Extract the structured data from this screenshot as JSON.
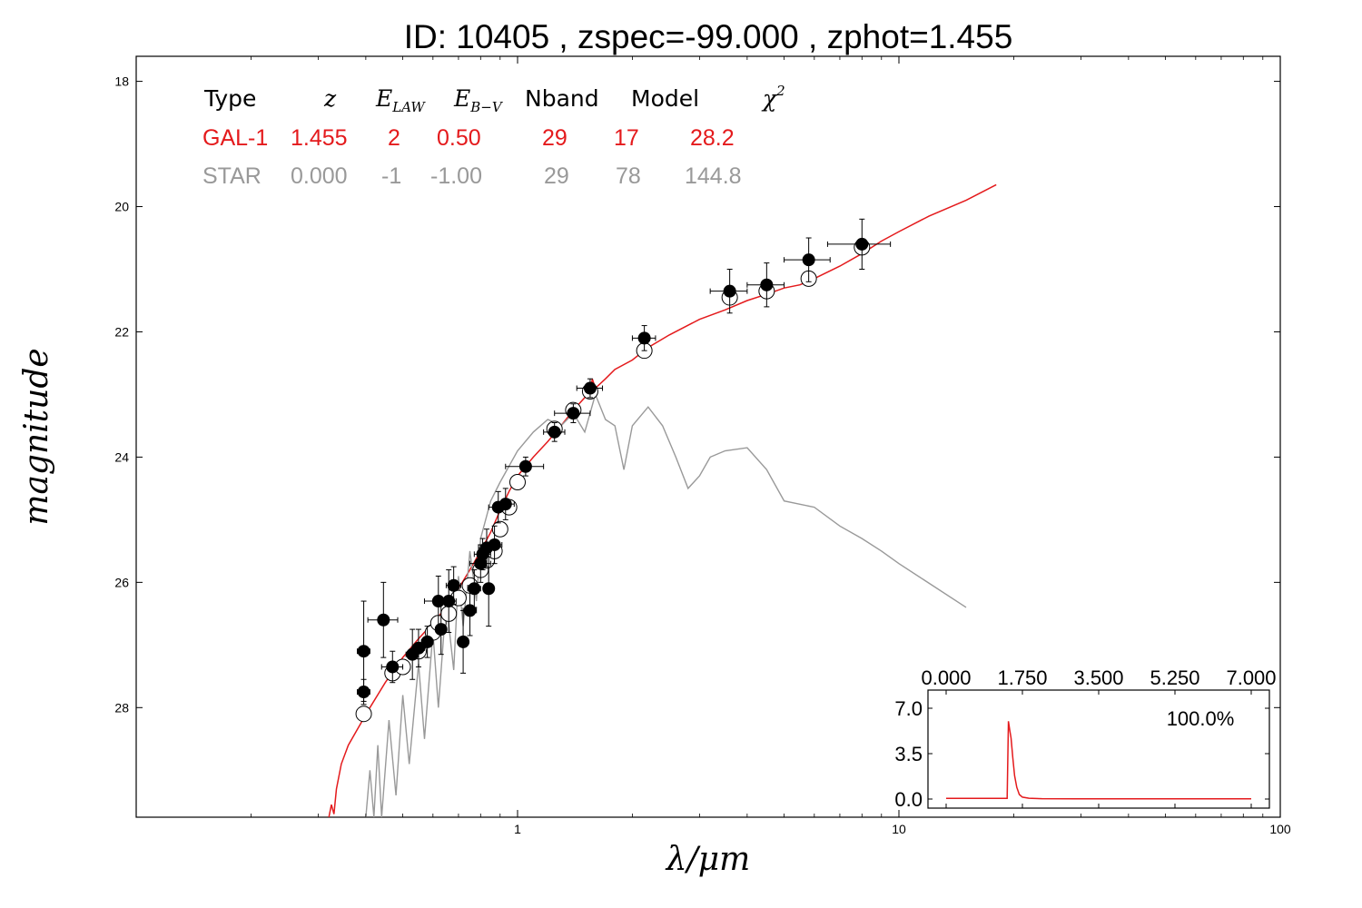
{
  "title": "ID:  10405 , zspec=-99.000 , zphot=1.455",
  "table": {
    "headers": {
      "type": "Type",
      "z": "z",
      "elaw_main": "E",
      "elaw_sub": "LAW",
      "ebv_main": "E",
      "ebv_sub": "B−V",
      "nband": "Nband",
      "model": "Model",
      "chi_main": "χ",
      "chi_sup": "2"
    },
    "rows": [
      {
        "type": "GAL-1",
        "z": "1.455",
        "elaw": "2",
        "ebv": "0.50",
        "nband": "29",
        "model": "17",
        "chi2": "28.2",
        "color": "#e41a1c"
      },
      {
        "type": "STAR",
        "z": "0.000",
        "elaw": "-1",
        "ebv": "-1.00",
        "nband": "29",
        "model": "78",
        "chi2": "144.8",
        "color": "#999999"
      }
    ]
  },
  "chart_data": [
    {
      "type": "scatter",
      "title": "ID:  10405 , zspec=-99.000 , zphot=1.455",
      "xlabel": "λ/μm",
      "ylabel": "magnitude",
      "xscale": "log",
      "xlim": [
        0.1,
        100
      ],
      "ylim": [
        29.75,
        17.6
      ],
      "y_inverted": true,
      "x_ticks": [
        "1",
        "10",
        "100"
      ],
      "y_ticks": [
        "18",
        "20",
        "22",
        "24",
        "26",
        "28"
      ],
      "y_tick_values": [
        18,
        20,
        22,
        24,
        26,
        28
      ],
      "colors": {
        "gal": "#e41a1c",
        "star": "#999999",
        "obs": "#000000"
      },
      "series": [
        {
          "name": "GAL-1",
          "kind": "line",
          "color": "#e41a1c",
          "points": [
            [
              0.32,
              29.75
            ],
            [
              0.325,
              29.55
            ],
            [
              0.33,
              29.7
            ],
            [
              0.335,
              29.3
            ],
            [
              0.345,
              28.9
            ],
            [
              0.36,
              28.6
            ],
            [
              0.38,
              28.35
            ],
            [
              0.41,
              28.0
            ],
            [
              0.45,
              27.6
            ],
            [
              0.5,
              27.2
            ],
            [
              0.55,
              26.9
            ],
            [
              0.6,
              26.65
            ],
            [
              0.65,
              26.4
            ],
            [
              0.7,
              26.1
            ],
            [
              0.75,
              25.8
            ],
            [
              0.8,
              25.5
            ],
            [
              0.85,
              25.2
            ],
            [
              0.9,
              24.85
            ],
            [
              0.95,
              24.55
            ],
            [
              1.0,
              24.3
            ],
            [
              1.1,
              24.0
            ],
            [
              1.2,
              23.75
            ],
            [
              1.3,
              23.5
            ],
            [
              1.4,
              23.25
            ],
            [
              1.5,
              23.05
            ],
            [
              1.55,
              23.0
            ],
            [
              1.57,
              22.75
            ],
            [
              1.6,
              22.9
            ],
            [
              1.7,
              22.75
            ],
            [
              1.8,
              22.6
            ],
            [
              2.0,
              22.45
            ],
            [
              2.2,
              22.25
            ],
            [
              2.5,
              22.05
            ],
            [
              3.0,
              21.8
            ],
            [
              3.5,
              21.65
            ],
            [
              4.0,
              21.5
            ],
            [
              4.5,
              21.4
            ],
            [
              5.0,
              21.3
            ],
            [
              5.5,
              21.25
            ],
            [
              6.0,
              21.15
            ],
            [
              7.0,
              20.95
            ],
            [
              8.0,
              20.75
            ],
            [
              9.0,
              20.55
            ],
            [
              10.0,
              20.4
            ],
            [
              12.0,
              20.15
            ],
            [
              15.0,
              19.9
            ],
            [
              18.0,
              19.65
            ]
          ]
        },
        {
          "name": "STAR",
          "kind": "line",
          "color": "#999999",
          "points": [
            [
              0.4,
              29.75
            ],
            [
              0.41,
              29.0
            ],
            [
              0.42,
              29.75
            ],
            [
              0.43,
              28.6
            ],
            [
              0.44,
              29.75
            ],
            [
              0.46,
              28.2
            ],
            [
              0.48,
              29.4
            ],
            [
              0.5,
              27.8
            ],
            [
              0.52,
              28.9
            ],
            [
              0.55,
              27.3
            ],
            [
              0.57,
              28.5
            ],
            [
              0.6,
              26.8
            ],
            [
              0.62,
              28.0
            ],
            [
              0.65,
              26.3
            ],
            [
              0.68,
              27.4
            ],
            [
              0.7,
              25.9
            ],
            [
              0.72,
              26.7
            ],
            [
              0.75,
              25.5
            ],
            [
              0.78,
              26.3
            ],
            [
              0.8,
              25.3
            ],
            [
              0.85,
              24.7
            ],
            [
              0.9,
              24.4
            ],
            [
              1.0,
              23.9
            ],
            [
              1.1,
              23.6
            ],
            [
              1.2,
              23.4
            ],
            [
              1.3,
              23.5
            ],
            [
              1.4,
              23.3
            ],
            [
              1.5,
              23.6
            ],
            [
              1.6,
              23.0
            ],
            [
              1.7,
              23.4
            ],
            [
              1.8,
              23.5
            ],
            [
              1.9,
              24.2
            ],
            [
              2.0,
              23.5
            ],
            [
              2.2,
              23.2
            ],
            [
              2.4,
              23.5
            ],
            [
              2.6,
              24.0
            ],
            [
              2.8,
              24.5
            ],
            [
              3.0,
              24.3
            ],
            [
              3.2,
              24.0
            ],
            [
              3.5,
              23.9
            ],
            [
              4.0,
              23.85
            ],
            [
              4.5,
              24.2
            ],
            [
              5.0,
              24.7
            ],
            [
              6.0,
              24.8
            ],
            [
              7.0,
              25.1
            ],
            [
              8.0,
              25.3
            ],
            [
              9.0,
              25.5
            ],
            [
              10.0,
              25.7
            ],
            [
              15.0,
              26.4
            ]
          ]
        }
      ],
      "observed": {
        "name": "observed",
        "marker": "filled-circle",
        "color": "#000000",
        "points": [
          {
            "x": 0.395,
            "y": 27.1,
            "yerr": 0.8,
            "xerr": [
              0.015,
              0.015
            ]
          },
          {
            "x": 0.395,
            "y": 27.75,
            "yerr": 0.2,
            "xerr": [
              0.015,
              0.015
            ]
          },
          {
            "x": 0.445,
            "y": 26.6,
            "yerr": 0.6,
            "xerr": [
              0.04,
              0.04
            ]
          },
          {
            "x": 0.47,
            "y": 27.35,
            "yerr": 0.25,
            "xerr": [
              0.03,
              0.03
            ]
          },
          {
            "x": 0.53,
            "y": 27.15,
            "yerr": 0.4,
            "xerr": [
              0.02,
              0.02
            ]
          },
          {
            "x": 0.55,
            "y": 27.05,
            "yerr": 0.3,
            "xerr": [
              0.02,
              0.02
            ]
          },
          {
            "x": 0.58,
            "y": 26.95,
            "yerr": 0.25,
            "xerr": [
              0.02,
              0.02
            ]
          },
          {
            "x": 0.62,
            "y": 26.3,
            "yerr": 0.4,
            "xerr": [
              0.05,
              0.05
            ]
          },
          {
            "x": 0.63,
            "y": 26.75,
            "yerr": 0.4,
            "xerr": [
              0.02,
              0.02
            ]
          },
          {
            "x": 0.66,
            "y": 26.3,
            "yerr": 0.5,
            "xerr": [
              0.03,
              0.03
            ]
          },
          {
            "x": 0.68,
            "y": 26.05,
            "yerr": 0.3,
            "xerr": [
              0.03,
              0.03
            ]
          },
          {
            "x": 0.72,
            "y": 26.95,
            "yerr": 0.5,
            "xerr": [
              0.02,
              0.02
            ]
          },
          {
            "x": 0.75,
            "y": 26.45,
            "yerr": 0.4,
            "xerr": [
              0.03,
              0.03
            ]
          },
          {
            "x": 0.77,
            "y": 26.1,
            "yerr": 0.3,
            "xerr": [
              0.03,
              0.03
            ]
          },
          {
            "x": 0.8,
            "y": 25.7,
            "yerr": 0.3,
            "xerr": [
              0.05,
              0.05
            ]
          },
          {
            "x": 0.81,
            "y": 25.55,
            "yerr": 0.25,
            "xerr": [
              0.04,
              0.04
            ]
          },
          {
            "x": 0.83,
            "y": 25.45,
            "yerr": 0.3,
            "xerr": [
              0.04,
              0.04
            ]
          },
          {
            "x": 0.84,
            "y": 26.1,
            "yerr": 0.6,
            "xerr": [
              0.02,
              0.02
            ]
          },
          {
            "x": 0.87,
            "y": 25.4,
            "yerr": 0.3,
            "xerr": [
              0.04,
              0.04
            ]
          },
          {
            "x": 0.89,
            "y": 24.8,
            "yerr": 0.25,
            "xerr": [
              0.05,
              0.05
            ]
          },
          {
            "x": 0.93,
            "y": 24.75,
            "yerr": 0.25,
            "xerr": [
              0.05,
              0.05
            ]
          },
          {
            "x": 1.05,
            "y": 24.15,
            "yerr": 0.15,
            "xerr": [
              0.12,
              0.12
            ]
          },
          {
            "x": 1.25,
            "y": 23.6,
            "yerr": 0.15,
            "xerr": [
              0.08,
              0.08
            ]
          },
          {
            "x": 1.4,
            "y": 23.3,
            "yerr": 0.15,
            "xerr": [
              0.15,
              0.15
            ]
          },
          {
            "x": 1.55,
            "y": 22.9,
            "yerr": 0.15,
            "xerr": [
              0.12,
              0.12
            ]
          },
          {
            "x": 2.15,
            "y": 22.1,
            "yerr": 0.2,
            "xerr": [
              0.15,
              0.15
            ]
          },
          {
            "x": 3.6,
            "y": 21.35,
            "yerr": 0.35,
            "xerr": [
              0.4,
              0.4
            ]
          },
          {
            "x": 4.5,
            "y": 21.25,
            "yerr": 0.35,
            "xerr": [
              0.5,
              0.5
            ]
          },
          {
            "x": 5.8,
            "y": 20.85,
            "yerr": 0.35,
            "xerr": [
              0.8,
              0.8
            ]
          },
          {
            "x": 8.0,
            "y": 20.6,
            "yerr": 0.4,
            "xerr": [
              1.5,
              1.5
            ]
          }
        ]
      },
      "model_photometry": {
        "name": "model",
        "marker": "open-circle",
        "color": "#000000",
        "points": [
          [
            0.395,
            28.1
          ],
          [
            0.47,
            27.45
          ],
          [
            0.5,
            27.35
          ],
          [
            0.55,
            27.1
          ],
          [
            0.6,
            26.8
          ],
          [
            0.62,
            26.65
          ],
          [
            0.66,
            26.5
          ],
          [
            0.7,
            26.25
          ],
          [
            0.75,
            26.05
          ],
          [
            0.8,
            25.8
          ],
          [
            0.83,
            25.65
          ],
          [
            0.87,
            25.5
          ],
          [
            0.9,
            25.15
          ],
          [
            0.95,
            24.8
          ],
          [
            1.0,
            24.4
          ],
          [
            1.25,
            23.55
          ],
          [
            1.4,
            23.25
          ],
          [
            1.55,
            22.95
          ],
          [
            2.15,
            22.3
          ],
          [
            3.6,
            21.45
          ],
          [
            4.5,
            21.35
          ],
          [
            5.8,
            21.15
          ],
          [
            8.0,
            20.65
          ]
        ]
      }
    },
    {
      "type": "line",
      "title": "",
      "xlabel": "",
      "ylabel": "",
      "xlim": [
        0.0,
        7.0
      ],
      "ylim": [
        -0.3,
        7.5
      ],
      "x_ticks": [
        "0.000",
        "1.750",
        "3.500",
        "5.250",
        "7.000"
      ],
      "x_tick_values": [
        0.0,
        1.75,
        3.5,
        5.25,
        7.0
      ],
      "y_ticks": [
        "7.0",
        "3.5",
        "0.0"
      ],
      "y_tick_values": [
        7.0,
        3.5,
        0.0
      ],
      "annotation": "100.0%",
      "series": [
        {
          "name": "",
          "color": "#e41a1c",
          "points": [
            [
              0.0,
              0.05
            ],
            [
              1.4,
              0.05
            ],
            [
              1.43,
              6.0
            ],
            [
              1.46,
              5.3
            ],
            [
              1.49,
              4.7
            ],
            [
              1.53,
              3.2
            ],
            [
              1.57,
              1.8
            ],
            [
              1.62,
              0.9
            ],
            [
              1.68,
              0.35
            ],
            [
              1.75,
              0.15
            ],
            [
              1.9,
              0.06
            ],
            [
              2.2,
              0.03
            ],
            [
              3.0,
              0.02
            ],
            [
              7.0,
              0.02
            ]
          ]
        }
      ]
    }
  ]
}
